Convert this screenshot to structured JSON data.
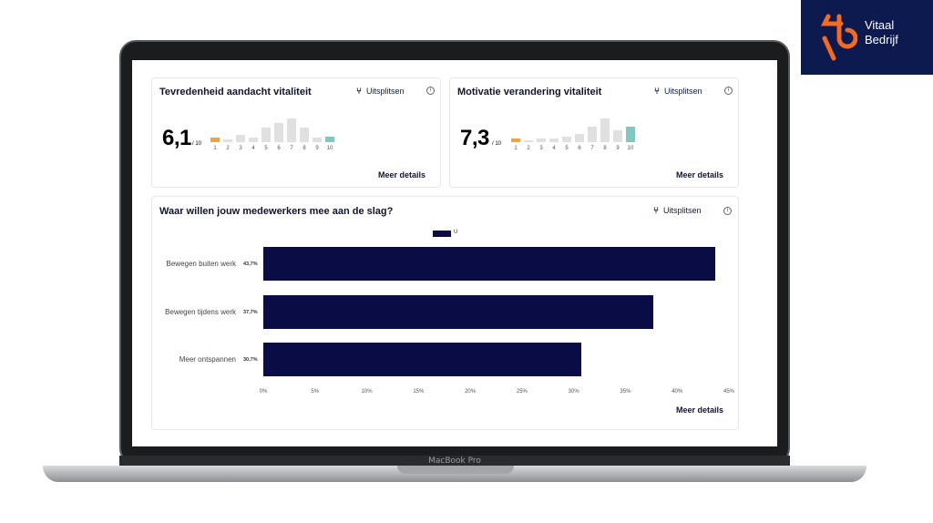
{
  "logo": {
    "line1": "Vitaal",
    "line2": "Bedrijf",
    "brand_color": "#0d1a4f",
    "accent": "#f06b24"
  },
  "device_label": "MacBook Pro",
  "card1": {
    "title": "Tevredenheid aandacht vitaliteit",
    "split_label": "Uitsplitsen",
    "info": "i",
    "score": "6,1",
    "score_den": "/ 10",
    "details_label": "Meer details"
  },
  "card2": {
    "title": "Motivatie verandering vitaliteit",
    "split_label": "Uitsplitsen",
    "info": "i",
    "score": "7,3",
    "score_den": "/ 10",
    "details_label": "Meer details"
  },
  "card3": {
    "title": "Waar willen jouw medewerkers mee aan de slag?",
    "split_label": "Uitsplitsen",
    "info": "i",
    "details_label": "Meer details"
  },
  "chart_data": [
    {
      "type": "bar",
      "categories": [
        "1",
        "2",
        "3",
        "4",
        "5",
        "6",
        "7",
        "8",
        "9",
        "10"
      ],
      "values": [
        1,
        0.5,
        1.5,
        1,
        3,
        4,
        5,
        3,
        1,
        1.2
      ],
      "colors": [
        "#f3a33c",
        "#e0e0e0",
        "#e0e0e0",
        "#e0e0e0",
        "#e0e0e0",
        "#e0e0e0",
        "#e0e0e0",
        "#e0e0e0",
        "#e0e0e0",
        "#7ec8c1"
      ]
    },
    {
      "type": "bar",
      "categories": [
        "1",
        "2",
        "3",
        "4",
        "5",
        "6",
        "7",
        "8",
        "9",
        "10"
      ],
      "values": [
        1,
        0.5,
        1,
        1,
        1.5,
        2,
        4,
        6,
        3,
        4
      ],
      "colors": [
        "#f3a33c",
        "#e0e0e0",
        "#e0e0e0",
        "#e0e0e0",
        "#e0e0e0",
        "#e0e0e0",
        "#e0e0e0",
        "#e0e0e0",
        "#e0e0e0",
        "#7ec8c1"
      ]
    },
    {
      "type": "bar",
      "orientation": "horizontal",
      "categories": [
        "Bewegen buiten werk",
        "Bewegen tijdens werk",
        "Meer ontspannen"
      ],
      "series": [
        {
          "name": "U",
          "values": [
            43.7,
            37.7,
            30.7
          ]
        }
      ],
      "value_labels": [
        "43,7%",
        "37,7%",
        "30,7%"
      ],
      "xticks": [
        "0%",
        "5%",
        "10%",
        "15%",
        "20%",
        "25%",
        "30%",
        "35%",
        "40%",
        "45%"
      ],
      "xlim": [
        0,
        45
      ],
      "color": "#0a0c46",
      "legend": "top-center"
    }
  ]
}
